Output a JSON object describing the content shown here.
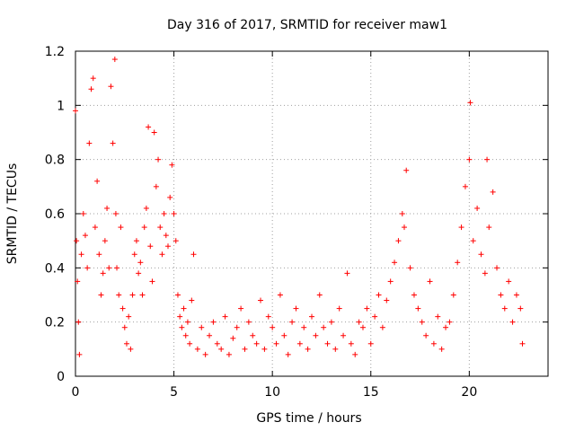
{
  "chart_data": {
    "type": "scatter",
    "title": "Day 316 of 2017, SRMTID for receiver maw1",
    "xlabel": "GPS time / hours",
    "ylabel": "SRMTID / TECUs",
    "xlim": [
      0,
      24
    ],
    "ylim": [
      0,
      1.2
    ],
    "x_ticks": [
      0,
      5,
      10,
      15,
      20
    ],
    "x_tick_labels": [
      "0",
      "5",
      "10",
      "15",
      "20"
    ],
    "y_ticks": [
      0,
      0.2,
      0.4,
      0.6,
      0.8,
      1.0,
      1.2
    ],
    "y_tick_labels": [
      "0",
      "0.2",
      "0.4",
      "0.6",
      "0.8",
      "1",
      "1.2"
    ],
    "grid": true,
    "marker": "+",
    "color": "#ff0000",
    "series": [
      {
        "name": "SRMTID",
        "x": [
          0.0,
          0.05,
          0.1,
          0.15,
          0.2,
          0.3,
          0.4,
          0.5,
          0.6,
          0.7,
          0.8,
          0.9,
          1.0,
          1.1,
          1.2,
          1.3,
          1.4,
          1.5,
          1.6,
          1.7,
          1.8,
          1.9,
          2.0,
          2.05,
          2.1,
          2.2,
          2.3,
          2.4,
          2.5,
          2.6,
          2.7,
          2.8,
          2.9,
          3.0,
          3.1,
          3.2,
          3.3,
          3.4,
          3.5,
          3.6,
          3.7,
          3.8,
          3.9,
          4.0,
          4.1,
          4.2,
          4.3,
          4.4,
          4.5,
          4.6,
          4.7,
          4.8,
          4.9,
          5.0,
          5.1,
          5.2,
          5.3,
          5.4,
          5.5,
          5.6,
          5.7,
          5.8,
          5.9,
          6.0,
          6.2,
          6.4,
          6.6,
          6.8,
          7.0,
          7.2,
          7.4,
          7.6,
          7.8,
          8.0,
          8.2,
          8.4,
          8.6,
          8.8,
          9.0,
          9.2,
          9.4,
          9.6,
          9.8,
          10.0,
          10.2,
          10.4,
          10.6,
          10.8,
          11.0,
          11.2,
          11.4,
          11.6,
          11.8,
          12.0,
          12.2,
          12.4,
          12.6,
          12.8,
          13.0,
          13.2,
          13.4,
          13.6,
          13.8,
          14.0,
          14.2,
          14.4,
          14.6,
          14.8,
          15.0,
          15.2,
          15.4,
          15.6,
          15.8,
          16.0,
          16.2,
          16.4,
          16.6,
          16.7,
          16.8,
          17.0,
          17.2,
          17.4,
          17.6,
          17.8,
          18.0,
          18.2,
          18.4,
          18.6,
          18.8,
          19.0,
          19.2,
          19.4,
          19.6,
          19.8,
          20.0,
          20.05,
          20.2,
          20.4,
          20.6,
          20.8,
          20.9,
          21.0,
          21.2,
          21.4,
          21.6,
          21.8,
          22.0,
          22.2,
          22.4,
          22.6,
          22.7
        ],
        "values": [
          0.98,
          0.5,
          0.35,
          0.2,
          0.08,
          0.45,
          0.6,
          0.52,
          0.4,
          0.86,
          1.06,
          1.1,
          0.55,
          0.72,
          0.45,
          0.3,
          0.38,
          0.5,
          0.62,
          0.4,
          1.07,
          0.86,
          1.17,
          0.6,
          0.4,
          0.3,
          0.55,
          0.25,
          0.18,
          0.12,
          0.22,
          0.1,
          0.3,
          0.45,
          0.5,
          0.38,
          0.42,
          0.3,
          0.55,
          0.62,
          0.92,
          0.48,
          0.35,
          0.9,
          0.7,
          0.8,
          0.55,
          0.45,
          0.6,
          0.52,
          0.48,
          0.66,
          0.78,
          0.6,
          0.5,
          0.3,
          0.22,
          0.18,
          0.25,
          0.15,
          0.2,
          0.12,
          0.28,
          0.45,
          0.1,
          0.18,
          0.08,
          0.15,
          0.2,
          0.12,
          0.1,
          0.22,
          0.08,
          0.14,
          0.18,
          0.25,
          0.1,
          0.2,
          0.15,
          0.12,
          0.28,
          0.1,
          0.22,
          0.18,
          0.12,
          0.3,
          0.15,
          0.08,
          0.2,
          0.25,
          0.12,
          0.18,
          0.1,
          0.22,
          0.15,
          0.3,
          0.18,
          0.12,
          0.2,
          0.1,
          0.25,
          0.15,
          0.38,
          0.12,
          0.08,
          0.2,
          0.18,
          0.25,
          0.12,
          0.22,
          0.3,
          0.18,
          0.28,
          0.35,
          0.42,
          0.5,
          0.6,
          0.55,
          0.76,
          0.4,
          0.3,
          0.25,
          0.2,
          0.15,
          0.35,
          0.12,
          0.22,
          0.1,
          0.18,
          0.2,
          0.3,
          0.42,
          0.55,
          0.7,
          0.8,
          1.01,
          0.5,
          0.62,
          0.45,
          0.38,
          0.8,
          0.55,
          0.68,
          0.4,
          0.3,
          0.25,
          0.35,
          0.2,
          0.3,
          0.25,
          0.12
        ]
      }
    ]
  }
}
